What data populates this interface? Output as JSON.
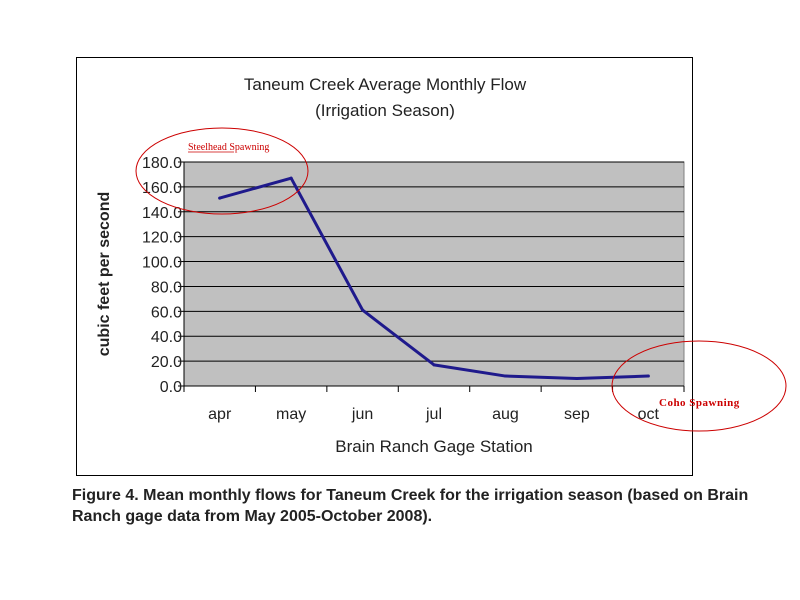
{
  "chart_data": {
    "type": "line",
    "title": [
      "Taneum Creek Average Monthly Flow",
      "(Irrigation Season)"
    ],
    "xlabel": "Brain Ranch Gage Station",
    "ylabel": "cubic feet per second",
    "categories": [
      "apr",
      "may",
      "jun",
      "jul",
      "aug",
      "sep",
      "oct"
    ],
    "series": [
      {
        "values": [
          151,
          167,
          61,
          17,
          8,
          6,
          8
        ],
        "color": "#1f1a8c"
      }
    ],
    "ylim": [
      0,
      180
    ],
    "yticks": [
      "0.0",
      "20.0",
      "40.0",
      "60.0",
      "80.0",
      "100.0",
      "120.0",
      "140.0",
      "160.0",
      "180.0"
    ],
    "grid": true,
    "plot_background": "#c0c0c0",
    "legend": "none",
    "annotations": [
      {
        "text": "Steelhead Spawning",
        "color": "#cc0000",
        "category": "may",
        "value": 165
      },
      {
        "text": "Coho Spawning",
        "color": "#cc0000",
        "category": "oct",
        "value": 8
      }
    ]
  },
  "caption": "Figure 4.  Mean monthly flows for Taneum Creek for the irrigation season (based on Brain Ranch gage data from May 2005-October 2008)."
}
